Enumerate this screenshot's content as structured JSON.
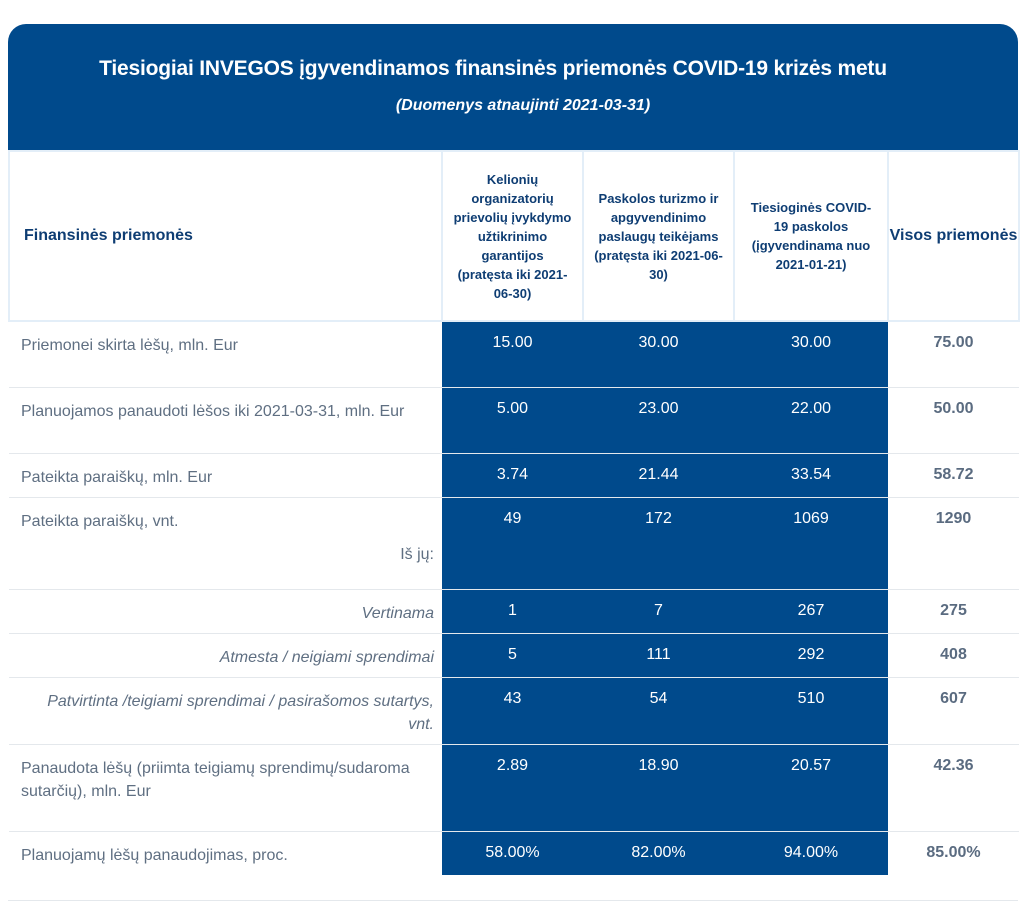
{
  "header": {
    "title": "Tiesiogiai INVEGOS įgyvendinamos finansinės priemonės COVID-19 krizės metu",
    "subtitle": "(Duomenys atnaujinti 2021-03-31)"
  },
  "table": {
    "head": {
      "label": "Finansinės priemonės",
      "col1": "Kelionių organizatorių prievolių įvykdymo užtikrinimo garantijos (pratęsta iki 2021-06-30)",
      "col2": "Paskolos turizmo ir apgyvendinimo paslaugų teikėjams (pratęsta iki 2021-06-30)",
      "col3": "Tiesioginės COVID-19 paskolos (įgyvendinama nuo 2021-01-21)",
      "total": "Visos priemonės"
    },
    "rows": [
      {
        "label": "Priemonei skirta lėšų, mln. Eur",
        "v1": "15.00",
        "v2": "30.00",
        "v3": "30.00",
        "total": "75.00"
      },
      {
        "label": "Planuojamos panaudoti lėšos iki 2021-03-31, mln. Eur",
        "v1": "5.00",
        "v2": "23.00",
        "v3": "22.00",
        "total": "50.00"
      },
      {
        "label": "Pateikta paraiškų, mln. Eur",
        "v1": "3.74",
        "v2": "21.44",
        "v3": "33.54",
        "total": "58.72"
      },
      {
        "label": "Pateikta paraiškų, vnt.",
        "note": "Iš jų:",
        "v1": "49",
        "v2": "172",
        "v3": "1069",
        "total": "1290"
      },
      {
        "label": "Vertinama",
        "v1": "1",
        "v2": "7",
        "v3": "267",
        "total": "275"
      },
      {
        "label": "Atmesta / neigiami sprendimai",
        "v1": "5",
        "v2": "111",
        "v3": "292",
        "total": "408"
      },
      {
        "label": "Patvirtinta /teigiami sprendimai / pasirašomos sutartys, vnt.",
        "v1": "43",
        "v2": "54",
        "v3": "510",
        "total": "607"
      },
      {
        "label": "Panaudota lėšų (priimta teigiamų sprendimų/sudaroma sutarčių), mln. Eur",
        "v1": "2.89",
        "v2": "18.90",
        "v3": "20.57",
        "total": "42.36"
      },
      {
        "label": "Planuojamų lėšų  panaudojimas, proc.",
        "v1": "58.00%",
        "v2": "82.00%",
        "v3": "94.00%",
        "total": "85.00%"
      }
    ]
  },
  "colors": {
    "primary_blue": "#004a8c",
    "header_text": "#0e3d73",
    "label_gray": "#5f6f82"
  }
}
